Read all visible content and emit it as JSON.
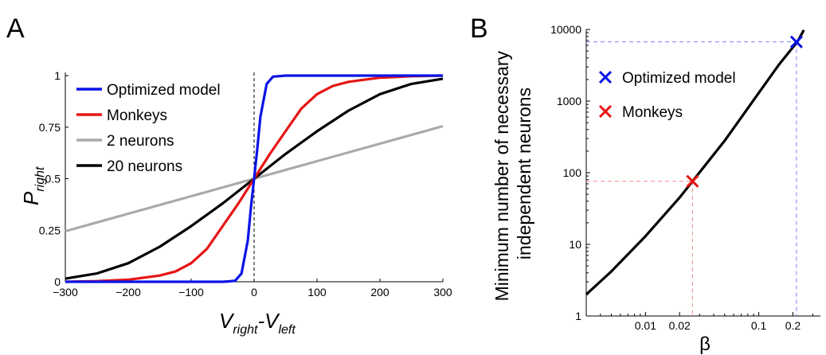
{
  "panels": {
    "a": "A",
    "b": "B"
  },
  "colors": {
    "optimized": "#0a14e6",
    "monkeys": "#e61414",
    "two": "#aaaaaa",
    "twenty": "#000000",
    "guide_blue": "#7f7fff",
    "guide_red": "#f08a8a"
  },
  "chart_data": [
    {
      "type": "line",
      "panel": "A",
      "xlabel": {
        "main": "V",
        "sub1": "right",
        "dash": "-V",
        "sub2": "left"
      },
      "ylabel": {
        "main": "P",
        "sub": "right"
      },
      "xlim": [
        -300,
        300
      ],
      "ylim": [
        0,
        1
      ],
      "xticks": [
        -300,
        -200,
        -100,
        0,
        100,
        200,
        300
      ],
      "xtick_labels": [
        "−300",
        "−200",
        "−100",
        "0",
        "100",
        "200",
        "300"
      ],
      "yticks": [
        0,
        0.25,
        0.5,
        0.75,
        1
      ],
      "ytick_labels": [
        "0",
        "0.25",
        "0.5",
        "0.75",
        "1"
      ],
      "grid": false,
      "legend_position": "top-left",
      "reference_line": {
        "x": 0,
        "style": "dashed"
      },
      "series": [
        {
          "name": "Optimized model",
          "color_key": "optimized",
          "x": [
            -300,
            -100,
            -50,
            -40,
            -30,
            -20,
            -10,
            -5,
            0,
            5,
            10,
            20,
            30,
            50,
            100,
            300
          ],
          "y": [
            0.0,
            0.0,
            0.0,
            0.002,
            0.005,
            0.04,
            0.2,
            0.36,
            0.5,
            0.64,
            0.8,
            0.96,
            0.995,
            1.0,
            1.0,
            1.0
          ]
        },
        {
          "name": "Monkeys",
          "color_key": "monkeys",
          "x": [
            -300,
            -250,
            -200,
            -150,
            -125,
            -100,
            -75,
            -50,
            -25,
            0,
            25,
            50,
            75,
            100,
            125,
            150,
            200,
            250,
            300
          ],
          "y": [
            0.0,
            0.003,
            0.01,
            0.03,
            0.05,
            0.09,
            0.16,
            0.27,
            0.38,
            0.5,
            0.62,
            0.73,
            0.84,
            0.91,
            0.95,
            0.97,
            0.99,
            0.997,
            1.0
          ]
        },
        {
          "name": "2 neurons",
          "color_key": "two",
          "x": [
            -300,
            -200,
            -100,
            0,
            100,
            200,
            300
          ],
          "y": [
            0.245,
            0.33,
            0.415,
            0.5,
            0.585,
            0.67,
            0.755
          ]
        },
        {
          "name": "20 neurons",
          "color_key": "twenty",
          "x": [
            -300,
            -250,
            -200,
            -150,
            -100,
            -50,
            0,
            50,
            100,
            150,
            200,
            250,
            300
          ],
          "y": [
            0.015,
            0.04,
            0.09,
            0.17,
            0.27,
            0.38,
            0.5,
            0.62,
            0.73,
            0.83,
            0.91,
            0.96,
            0.985
          ]
        }
      ]
    },
    {
      "type": "line",
      "panel": "B",
      "xscale": "log",
      "yscale": "log",
      "xlabel": "β",
      "ylabel": [
        "Minimum number of necessary",
        "independent neurons"
      ],
      "xlim": [
        0.003,
        0.35
      ],
      "ylim": [
        1,
        10000
      ],
      "xticks": [
        0.01,
        0.02,
        0.1,
        0.2
      ],
      "xtick_labels": [
        "0.01",
        "0.02",
        "0.1",
        "0.2"
      ],
      "yticks": [
        1,
        10,
        100,
        1000,
        10000
      ],
      "ytick_labels": [
        "1",
        "10",
        "100",
        "1000",
        "10000"
      ],
      "grid": false,
      "legend_position": "top-left",
      "series": [
        {
          "name": "",
          "color_key": "twenty",
          "x": [
            0.003,
            0.005,
            0.01,
            0.02,
            0.026,
            0.05,
            0.1,
            0.15,
            0.22,
            0.25
          ],
          "y": [
            2,
            4.2,
            13,
            45,
            76,
            280,
            1300,
            3200,
            6800,
            9800
          ]
        }
      ],
      "markers": [
        {
          "name": "Optimized model",
          "color_key": "optimized",
          "x": 0.215,
          "y": 6700
        },
        {
          "name": "Monkeys",
          "color_key": "monkeys",
          "x": 0.026,
          "y": 76
        }
      ]
    }
  ]
}
